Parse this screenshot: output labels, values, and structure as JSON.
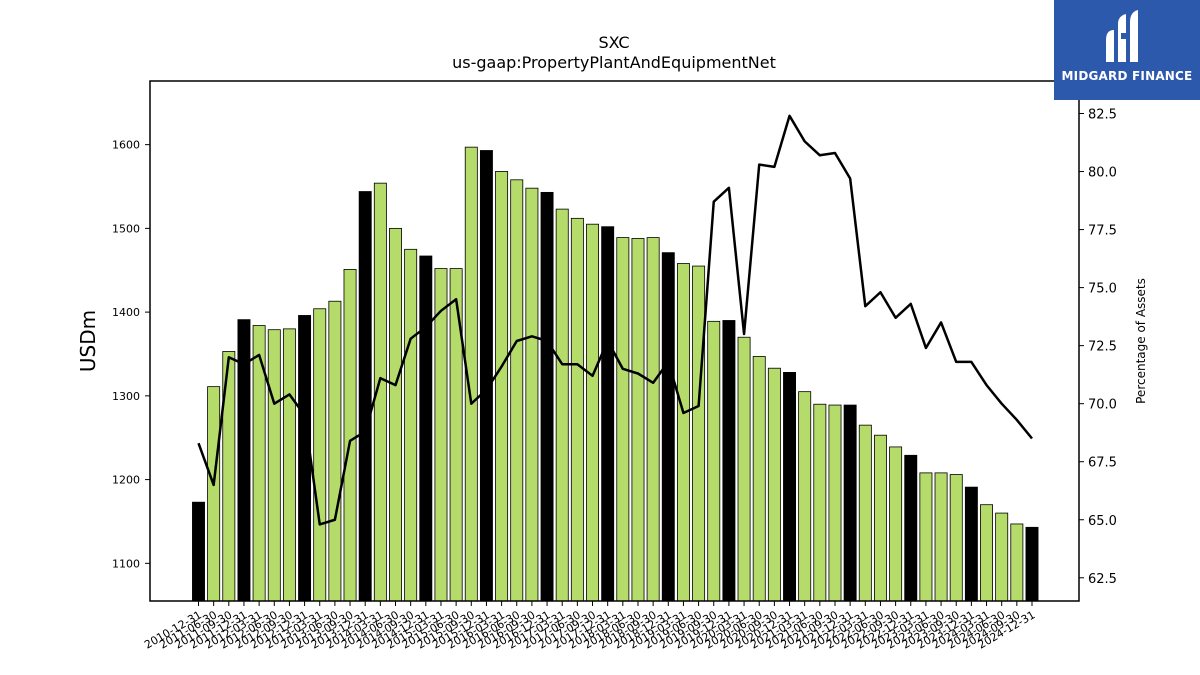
{
  "chart_data": {
    "type": "bar",
    "title": "SXC",
    "subtitle": "us-gaap:PropertyPlantAndEquipmentNet",
    "ylabel": "USDm",
    "y2label": "Percentage of Assets",
    "ylim": [
      1055,
      1676
    ],
    "y2lim": [
      61.5,
      83.9
    ],
    "yticks": [
      1100,
      1200,
      1300,
      1400,
      1500,
      1600
    ],
    "y2ticks": [
      "62.5",
      "65.0",
      "67.5",
      "70.0",
      "72.5",
      "75.0",
      "77.5",
      "80.0",
      "82.5"
    ],
    "categories": [
      "2010-12-31",
      "2011-06-30",
      "2011-09-30",
      "2011-12-31",
      "2012-03-31",
      "2012-06-30",
      "2012-09-30",
      "2012-12-31",
      "2013-03-31",
      "2013-06-30",
      "2013-09-30",
      "2013-12-31",
      "2014-03-31",
      "2014-06-30",
      "2014-09-30",
      "2014-12-31",
      "2015-03-31",
      "2015-06-30",
      "2015-09-30",
      "2015-12-31",
      "2016-03-31",
      "2016-06-30",
      "2016-09-30",
      "2016-12-31",
      "2017-03-31",
      "2017-06-30",
      "2017-09-30",
      "2017-12-31",
      "2018-03-31",
      "2018-06-30",
      "2018-09-30",
      "2018-12-31",
      "2019-03-31",
      "2019-06-30",
      "2019-09-30",
      "2019-12-31",
      "2020-03-31",
      "2020-06-30",
      "2020-09-30",
      "2020-12-31",
      "2021-03-31",
      "2021-06-30",
      "2021-09-30",
      "2021-12-31",
      "2022-03-31",
      "2022-06-30",
      "2022-09-30",
      "2022-12-31",
      "2023-03-31",
      "2023-06-30",
      "2023-09-30",
      "2023-12-31",
      "2024-03-31",
      "2024-06-30",
      "2024-09-30",
      "2024-12-31"
    ],
    "series": [
      {
        "type": "bar",
        "values": [
          1173,
          1311,
          1353,
          1391,
          1384,
          1379,
          1380,
          1396,
          1404,
          1413,
          1451,
          1544,
          1554,
          1500,
          1475,
          1467,
          1452,
          1452,
          1597,
          1593,
          1568,
          1558,
          1548,
          1543,
          1523,
          1512,
          1505,
          1502,
          1489,
          1488,
          1489,
          1471,
          1458,
          1455,
          1389,
          1390,
          1370,
          1347,
          1333,
          1328,
          1305,
          1290,
          1289,
          1289,
          1265,
          1253,
          1239,
          1229,
          1208,
          1208,
          1206,
          1191,
          1170,
          1160,
          1147,
          1143
        ],
        "year_end_color": "#000000",
        "quarter_color": "#b5dc6b"
      },
      {
        "type": "line",
        "axis": "right",
        "values": [
          68.3,
          66.5,
          72.0,
          71.7,
          72.1,
          70.0,
          70.4,
          69.5,
          64.8,
          65.0,
          68.4,
          68.8,
          71.1,
          70.8,
          72.8,
          73.3,
          74.0,
          74.5,
          70.0,
          70.6,
          71.6,
          72.7,
          72.9,
          72.7,
          71.7,
          71.7,
          71.2,
          72.7,
          71.5,
          71.3,
          70.9,
          71.8,
          69.6,
          69.9,
          78.7,
          79.3,
          73.0,
          80.3,
          80.2,
          82.4,
          81.3,
          80.7,
          80.8,
          79.7,
          74.2,
          74.8,
          73.7,
          74.3,
          72.4,
          73.5,
          71.8,
          71.8,
          70.8,
          70.0,
          69.3,
          68.5
        ],
        "color": "#000000"
      }
    ],
    "grid": false,
    "legend": "none"
  },
  "logo": {
    "text": "MIDGARD FINANCE",
    "color": "#2d59ad"
  }
}
